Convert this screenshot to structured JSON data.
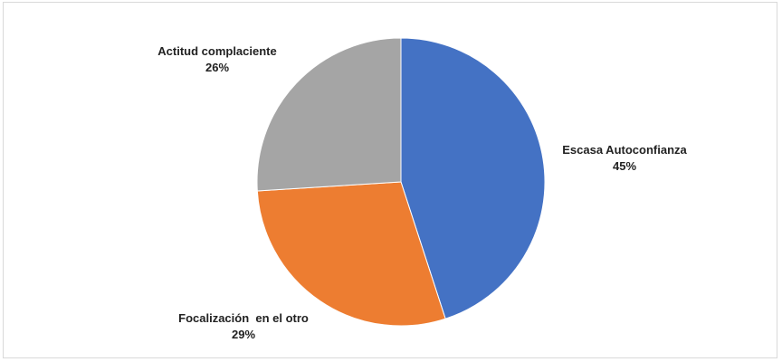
{
  "chart_data": {
    "type": "pie",
    "slices": [
      {
        "label": "Escasa Autoconfianza",
        "value": 45,
        "value_label": "45%",
        "color": "#4472C4"
      },
      {
        "label": "Focalización  en el otro",
        "value": 29,
        "value_label": "29%",
        "color": "#ED7D31"
      },
      {
        "label": "Actitud complaciente",
        "value": 26,
        "value_label": "26%",
        "color": "#A5A5A5"
      }
    ],
    "start_angle": "12 o'clock",
    "direction": "clockwise",
    "legend": "none"
  }
}
